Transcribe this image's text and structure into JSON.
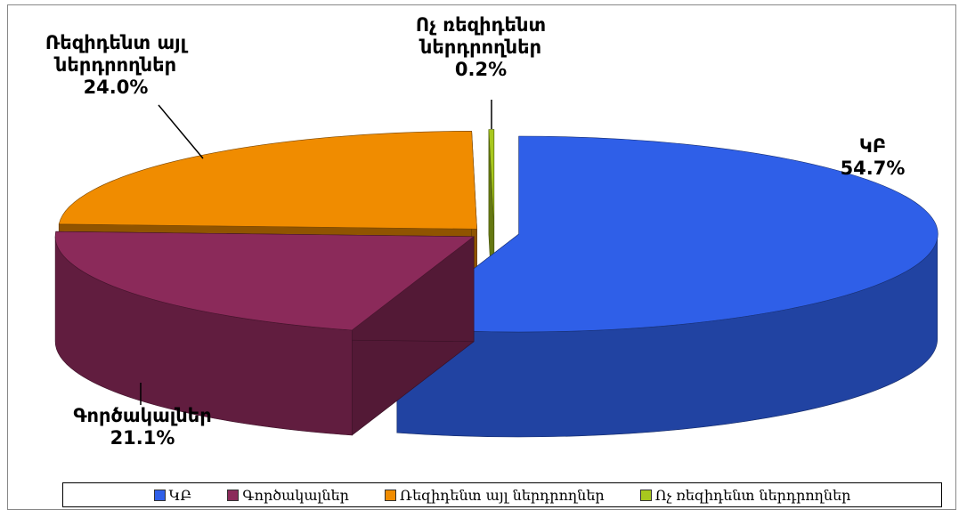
{
  "chart_data": {
    "type": "pie3d",
    "categories": [
      "ԿԲ",
      "Գործակալներ",
      "Ռեզիդենտ այլ ներդրողներ",
      "Ոչ ռեզիդենտ ներդրողներ"
    ],
    "values": [
      54.7,
      21.1,
      24.0,
      0.2
    ],
    "value_labels": [
      "54.7%",
      "21.1%",
      "24.0%",
      "0.2%"
    ],
    "colors": [
      "#2f5fe8",
      "#8b2a5a",
      "#f08c00",
      "#a8c81e"
    ],
    "legend": "bottom"
  }
}
